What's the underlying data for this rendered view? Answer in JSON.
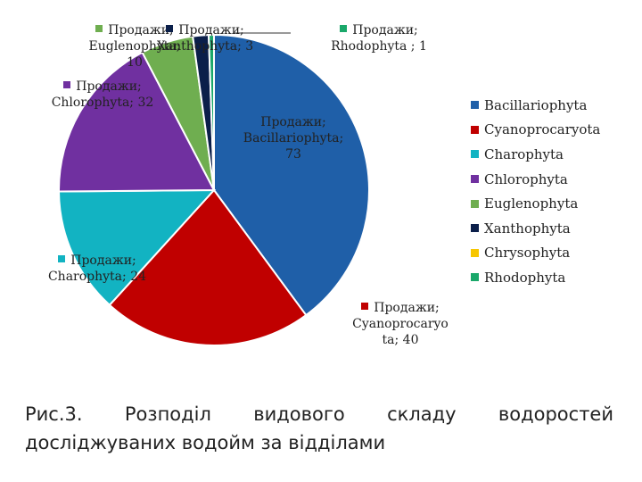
{
  "chart_data": {
    "type": "pie",
    "categories": [
      "Bacillariophyta",
      "Cyanoprocaryota",
      "Charophyta",
      "Chlorophyta",
      "Euglenophyta",
      "Xanthophyta",
      "Chrysophyta",
      "Rhodophyta"
    ],
    "values": [
      73,
      40,
      24,
      32,
      10,
      3,
      0,
      1
    ],
    "colors": [
      "#1f5fa8",
      "#c00000",
      "#12b3c2",
      "#7030a0",
      "#6fae50",
      "#0b1f4a",
      "#f7c600",
      "#1aa86a"
    ],
    "data_labels": [
      {
        "series": "Продажи;",
        "category": "Bacillariophyta;",
        "value": "73"
      },
      {
        "series": "Продажи;",
        "category": "Cyanoprocaryo",
        "category_cont": "ta;",
        "value": "40"
      },
      {
        "series": "Продажи;",
        "category": "Charophyta;",
        "value": "24"
      },
      {
        "series": "Продажи;",
        "category": "Chlorophyta;",
        "value": "32"
      },
      {
        "series": "Продажи;",
        "category": "Euglenophyta;",
        "value": "10"
      },
      {
        "series": "Продажи;",
        "category": "Xanthophyta;",
        "value": "3"
      },
      {
        "series": "Продажи;",
        "category": "Rhodophyta ;",
        "value": "1"
      }
    ],
    "legend_position": "right"
  },
  "caption": "Рис.3. Розподіл видового складу водоростей досліджуваних водойм за відділами"
}
